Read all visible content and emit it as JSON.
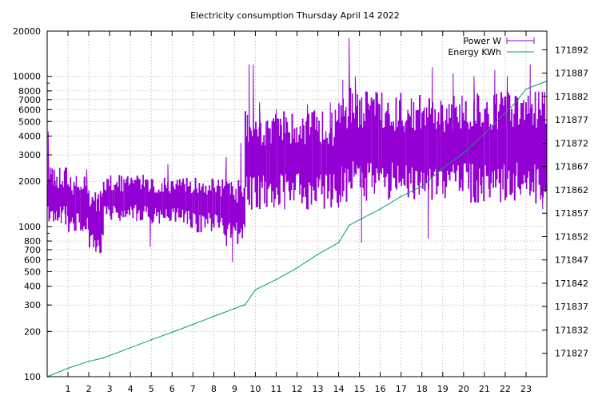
{
  "chart_data": {
    "type": "line",
    "title": "Electricity consumption Thursday April 14 2022",
    "xlabel": "",
    "ylabel": "",
    "y2label": "",
    "grid": true,
    "legend_position": "top-right",
    "x_ticks": [
      1,
      2,
      3,
      4,
      5,
      6,
      7,
      8,
      9,
      10,
      11,
      12,
      13,
      14,
      15,
      16,
      17,
      18,
      19,
      20,
      21,
      22,
      23
    ],
    "xlim": [
      0,
      24
    ],
    "y_scale": "log",
    "ylim": [
      100,
      20000
    ],
    "y_ticks": [
      100,
      200,
      300,
      400,
      500,
      600,
      700,
      800,
      1000,
      2000,
      3000,
      4000,
      5000,
      6000,
      7000,
      8000,
      10000,
      20000
    ],
    "y2lim": [
      171822,
      171896
    ],
    "y2_ticks": [
      171827,
      171832,
      171837,
      171842,
      171847,
      171852,
      171857,
      171862,
      171867,
      171872,
      171877,
      171882,
      171887,
      171892
    ],
    "series": [
      {
        "name": "Power W",
        "color": "#9400d3",
        "axis": "y",
        "segments": [
          {
            "x0": 0.0,
            "x1": 1.0,
            "low": 950,
            "high": 2500,
            "n": 22,
            "seed": 3,
            "spikes": [
              [
                0.05,
                4300
              ],
              [
                0.3,
                1300
              ]
            ]
          },
          {
            "x0": 1.0,
            "x1": 2.0,
            "low": 850,
            "high": 2200,
            "n": 18,
            "seed": 7,
            "spikes": [
              [
                1.9,
                2400
              ]
            ]
          },
          {
            "x0": 2.0,
            "x1": 2.7,
            "low": 620,
            "high": 1800,
            "n": 14,
            "seed": 11,
            "spikes": []
          },
          {
            "x0": 2.7,
            "x1": 5.0,
            "low": 1050,
            "high": 2200,
            "n": 40,
            "seed": 13,
            "spikes": [
              [
                4.95,
                730
              ]
            ]
          },
          {
            "x0": 5.0,
            "x1": 6.8,
            "low": 1000,
            "high": 2100,
            "n": 32,
            "seed": 17,
            "spikes": [
              [
                5.8,
                2600
              ]
            ]
          },
          {
            "x0": 6.8,
            "x1": 8.4,
            "low": 880,
            "high": 2100,
            "n": 26,
            "seed": 19,
            "spikes": []
          },
          {
            "x0": 8.4,
            "x1": 9.5,
            "low": 700,
            "high": 2100,
            "n": 20,
            "seed": 23,
            "spikes": [
              [
                8.6,
                2900
              ],
              [
                8.9,
                580
              ],
              [
                9.3,
                3600
              ]
            ]
          },
          {
            "x0": 9.5,
            "x1": 14.0,
            "low": 1200,
            "high": 6000,
            "n": 80,
            "seed": 29,
            "spikes": [
              [
                9.7,
                12000
              ],
              [
                9.9,
                12000
              ],
              [
                10.2,
                6700
              ],
              [
                11.0,
                6000
              ],
              [
                12.5,
                6500
              ],
              [
                13.6,
                6700
              ]
            ]
          },
          {
            "x0": 14.0,
            "x1": 15.5,
            "low": 1300,
            "high": 8500,
            "n": 30,
            "seed": 31,
            "spikes": [
              [
                14.2,
                9500
              ],
              [
                14.5,
                18000
              ],
              [
                14.8,
                10000
              ],
              [
                15.1,
                780
              ]
            ]
          },
          {
            "x0": 15.5,
            "x1": 24.0,
            "low": 1300,
            "high": 8000,
            "n": 150,
            "seed": 37,
            "spikes": [
              [
                18.3,
                830
              ],
              [
                18.5,
                11500
              ],
              [
                19.5,
                10500
              ],
              [
                20.5,
                10000
              ],
              [
                21.5,
                11000
              ],
              [
                22.1,
                10000
              ],
              [
                23.2,
                12000
              ],
              [
                23.8,
                1300
              ]
            ]
          }
        ]
      },
      {
        "name": "Energy KWh",
        "color": "#009e73",
        "axis": "y2",
        "x": [
          0,
          1,
          2,
          2.7,
          4,
          5,
          6,
          7,
          8,
          9,
          9.5,
          10,
          11,
          12,
          13,
          14,
          14.5,
          15,
          16,
          17,
          18,
          19,
          20,
          21,
          22,
          22.5,
          23,
          24
        ],
        "values": [
          171822.0,
          171823.8,
          171825.3,
          171826.0,
          171828.2,
          171829.9,
          171831.5,
          171833.2,
          171834.9,
          171836.6,
          171837.4,
          171840.6,
          171842.8,
          171845.3,
          171848.2,
          171850.7,
          171854.4,
          171855.6,
          171857.9,
          171860.6,
          171862.8,
          171866.6,
          171869.9,
          171874.0,
          171878.5,
          171880.7,
          171883.6,
          171885.3
        ]
      }
    ]
  }
}
